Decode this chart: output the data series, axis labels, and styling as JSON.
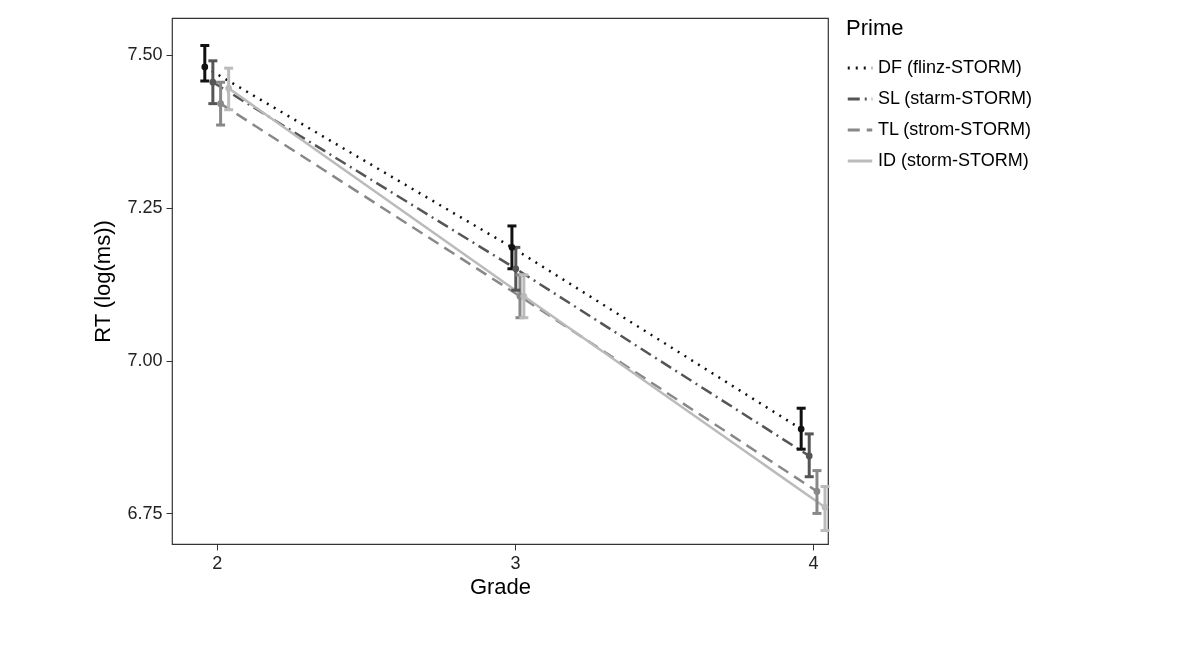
{
  "chart_data": {
    "type": "line",
    "xlabel": "Grade",
    "ylabel": "RT (log(ms))",
    "legend_title": "Prime",
    "legend": "right",
    "marker": "circle",
    "grid": false,
    "xlim": [
      1.85,
      4.05
    ],
    "xticks": [
      2,
      3,
      4
    ],
    "ylim": [
      6.7,
      7.56
    ],
    "yticks": [
      {
        "value": 6.75,
        "label": "6.75"
      },
      {
        "value": 7,
        "label": "7.00"
      },
      {
        "value": 7.25,
        "label": "7.25"
      },
      {
        "value": 7.5,
        "label": "7.50"
      }
    ],
    "series": [
      {
        "name": "DF (flinz-STORM)",
        "color": "#111111",
        "line_style": "dotted",
        "x": [
          1.96,
          2.99,
          3.96
        ],
        "values": [
          7.48,
          7.185,
          6.888
        ],
        "errors": [
          [
            7.457,
            7.515
          ],
          [
            7.15,
            7.22
          ],
          [
            6.855,
            6.922
          ]
        ]
      },
      {
        "name": "SL (starm-STORM)",
        "color": "#555555",
        "line_style": "dashdot",
        "x": [
          1.987,
          3.003,
          3.987
        ],
        "values": [
          7.455,
          7.15,
          6.844
        ],
        "errors": [
          [
            7.42,
            7.49
          ],
          [
            7.115,
            7.185
          ],
          [
            6.81,
            6.88
          ]
        ]
      },
      {
        "name": "TL (strom-STORM)",
        "color": "#888888",
        "line_style": "dashed",
        "x": [
          2.013,
          3.017,
          4.013
        ],
        "values": [
          7.42,
          7.105,
          6.786
        ],
        "errors": [
          [
            7.385,
            7.455
          ],
          [
            7.07,
            7.14
          ],
          [
            6.75,
            6.82
          ]
        ]
      },
      {
        "name": "ID (storm-STORM)",
        "color": "#bbbbbb",
        "line_style": "solid",
        "x": [
          2.04,
          3.03,
          4.04
        ],
        "values": [
          7.445,
          7.105,
          6.76
        ],
        "errors": [
          [
            7.41,
            7.478
          ],
          [
            7.07,
            7.14
          ],
          [
            6.722,
            6.794
          ]
        ]
      }
    ]
  }
}
